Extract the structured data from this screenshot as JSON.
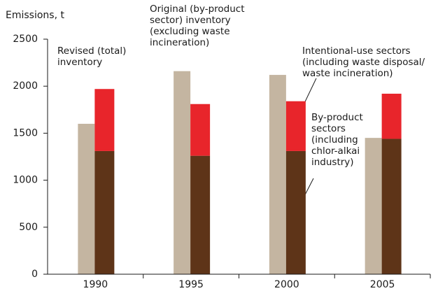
{
  "chart_data": {
    "type": "bar",
    "y_label": "Emissions, t",
    "categories": [
      "1990",
      "1995",
      "2000",
      "2005"
    ],
    "series": [
      {
        "name": "Original (by-product sector) inventory (excluding waste incineration)",
        "color": "#c4b5a1",
        "values": [
          1600,
          2160,
          2120,
          1450
        ]
      },
      {
        "name": "By-product sectors (including chlor-alkai industry)",
        "color": "#5e3418",
        "values": [
          1310,
          1260,
          1310,
          1440
        ]
      },
      {
        "name": "Intentional-use sectors (including waste disposal/ waste incineration)",
        "color": "#e8252b",
        "values": [
          660,
          550,
          530,
          480
        ]
      }
    ],
    "annotations": [
      "Revised (total) inventory"
    ],
    "ylim": [
      0,
      2500
    ],
    "yticks": [
      0,
      500,
      1000,
      1500,
      2000,
      2500
    ],
    "grid": false
  }
}
